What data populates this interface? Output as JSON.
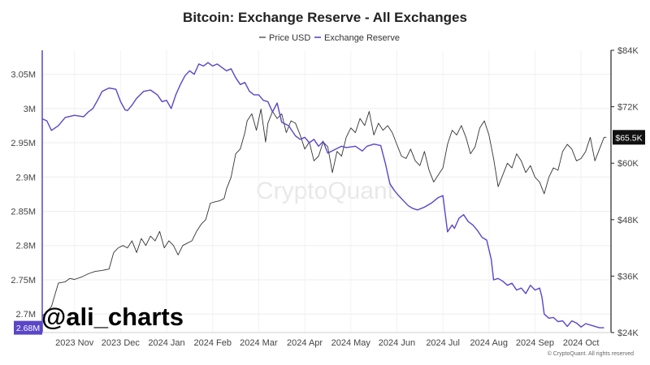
{
  "chart_data": {
    "type": "line",
    "title": "Bitcoin: Exchange Reserve - All Exchanges",
    "x_tick_labels": [
      "2023 Nov",
      "2023 Dec",
      "2024 Jan",
      "2024 Feb",
      "2024 Mar",
      "2024 Apr",
      "2024 May",
      "2024 Jun",
      "2024 Jul",
      "2024 Aug",
      "2024 Sep",
      "2024 Oct"
    ],
    "x_tick_times": [
      0.7,
      1.7,
      2.7,
      3.7,
      4.7,
      5.7,
      6.7,
      7.7,
      8.7,
      9.7,
      10.7,
      11.7
    ],
    "x_range": [
      0,
      12.35
    ],
    "left_axis": {
      "label": "Exchange Reserve",
      "range": [
        2.673,
        3.085
      ],
      "ticks": [
        2.7,
        2.75,
        2.8,
        2.85,
        2.9,
        2.95,
        3.0,
        3.05
      ],
      "tick_labels": [
        "2.7M",
        "2.75M",
        "2.8M",
        "2.85M",
        "2.9M",
        "2.95M",
        "3M",
        "3.05M"
      ]
    },
    "right_axis": {
      "label": "Price USD",
      "range": [
        24,
        84
      ],
      "ticks": [
        24,
        36,
        48,
        60,
        72,
        84
      ],
      "tick_labels": [
        "$24K",
        "$36K",
        "$48K",
        "$60K",
        "$72K",
        "$84K"
      ]
    },
    "series": [
      {
        "name": "Exchange Reserve",
        "axis": "left",
        "color": "#5b45c8",
        "points": [
          [
            0.0,
            2.985
          ],
          [
            0.1,
            2.982
          ],
          [
            0.2,
            2.968
          ],
          [
            0.35,
            2.975
          ],
          [
            0.5,
            2.987
          ],
          [
            0.7,
            2.99
          ],
          [
            0.9,
            2.988
          ],
          [
            1.0,
            2.995
          ],
          [
            1.1,
            3.0
          ],
          [
            1.2,
            3.012
          ],
          [
            1.3,
            3.025
          ],
          [
            1.45,
            3.03
          ],
          [
            1.6,
            3.028
          ],
          [
            1.7,
            3.01
          ],
          [
            1.8,
            2.998
          ],
          [
            1.85,
            2.997
          ],
          [
            1.95,
            3.005
          ],
          [
            2.05,
            3.015
          ],
          [
            2.2,
            3.025
          ],
          [
            2.35,
            3.027
          ],
          [
            2.5,
            3.02
          ],
          [
            2.6,
            3.01
          ],
          [
            2.7,
            3.012
          ],
          [
            2.8,
            3.0
          ],
          [
            2.9,
            3.02
          ],
          [
            3.0,
            3.035
          ],
          [
            3.1,
            3.048
          ],
          [
            3.2,
            3.055
          ],
          [
            3.3,
            3.05
          ],
          [
            3.4,
            3.065
          ],
          [
            3.5,
            3.062
          ],
          [
            3.6,
            3.067
          ],
          [
            3.7,
            3.062
          ],
          [
            3.8,
            3.065
          ],
          [
            4.0,
            3.055
          ],
          [
            4.1,
            3.058
          ],
          [
            4.2,
            3.045
          ],
          [
            4.3,
            3.035
          ],
          [
            4.4,
            3.038
          ],
          [
            4.5,
            3.025
          ],
          [
            4.6,
            3.02
          ],
          [
            4.7,
            3.02
          ],
          [
            4.8,
            3.012
          ],
          [
            4.9,
            3.01
          ],
          [
            5.0,
            2.995
          ],
          [
            5.1,
            3.008
          ],
          [
            5.2,
            2.98
          ],
          [
            5.35,
            2.975
          ],
          [
            5.5,
            2.96
          ],
          [
            5.6,
            2.955
          ],
          [
            5.7,
            2.958
          ],
          [
            5.8,
            2.95
          ],
          [
            5.9,
            2.955
          ],
          [
            6.0,
            2.945
          ],
          [
            6.1,
            2.952
          ],
          [
            6.2,
            2.935
          ],
          [
            6.35,
            2.94
          ],
          [
            6.5,
            2.945
          ],
          [
            6.6,
            2.943
          ],
          [
            6.8,
            2.945
          ],
          [
            6.95,
            2.938
          ],
          [
            7.05,
            2.945
          ],
          [
            7.2,
            2.948
          ],
          [
            7.35,
            2.946
          ],
          [
            7.45,
            2.92
          ],
          [
            7.55,
            2.89
          ],
          [
            7.65,
            2.88
          ],
          [
            7.75,
            2.872
          ],
          [
            7.85,
            2.865
          ],
          [
            7.95,
            2.858
          ],
          [
            8.05,
            2.854
          ],
          [
            8.15,
            2.852
          ],
          [
            8.3,
            2.856
          ],
          [
            8.45,
            2.862
          ],
          [
            8.6,
            2.87
          ],
          [
            8.7,
            2.873
          ],
          [
            8.8,
            2.82
          ],
          [
            8.9,
            2.83
          ],
          [
            8.95,
            2.825
          ],
          [
            9.05,
            2.84
          ],
          [
            9.15,
            2.845
          ],
          [
            9.25,
            2.835
          ],
          [
            9.35,
            2.83
          ],
          [
            9.45,
            2.822
          ],
          [
            9.55,
            2.812
          ],
          [
            9.65,
            2.808
          ],
          [
            9.75,
            2.78
          ],
          [
            9.8,
            2.75
          ],
          [
            9.9,
            2.752
          ],
          [
            10.0,
            2.748
          ],
          [
            10.1,
            2.742
          ],
          [
            10.2,
            2.745
          ],
          [
            10.3,
            2.735
          ],
          [
            10.4,
            2.738
          ],
          [
            10.5,
            2.73
          ],
          [
            10.6,
            2.742
          ],
          [
            10.7,
            2.735
          ],
          [
            10.8,
            2.738
          ],
          [
            10.85,
            2.725
          ],
          [
            10.9,
            2.7
          ],
          [
            11.0,
            2.694
          ],
          [
            11.1,
            2.695
          ],
          [
            11.2,
            2.689
          ],
          [
            11.3,
            2.69
          ],
          [
            11.4,
            2.682
          ],
          [
            11.5,
            2.69
          ],
          [
            11.6,
            2.687
          ],
          [
            11.7,
            2.681
          ],
          [
            11.8,
            2.686
          ],
          [
            11.9,
            2.684
          ],
          [
            12.0,
            2.682
          ],
          [
            12.1,
            2.68
          ],
          [
            12.2,
            2.68
          ]
        ]
      },
      {
        "name": "Price USD",
        "axis": "right",
        "color": "#333333",
        "points": [
          [
            0.0,
            27.5
          ],
          [
            0.1,
            28.5
          ],
          [
            0.2,
            29.5
          ],
          [
            0.35,
            34.5
          ],
          [
            0.5,
            34.8
          ],
          [
            0.6,
            35.5
          ],
          [
            0.7,
            35.3
          ],
          [
            0.85,
            35.8
          ],
          [
            1.0,
            36.5
          ],
          [
            1.15,
            37.0
          ],
          [
            1.3,
            37.2
          ],
          [
            1.45,
            37.5
          ],
          [
            1.55,
            41.0
          ],
          [
            1.65,
            42.0
          ],
          [
            1.75,
            42.5
          ],
          [
            1.85,
            42.0
          ],
          [
            1.95,
            43.5
          ],
          [
            2.05,
            41.0
          ],
          [
            2.15,
            44.0
          ],
          [
            2.25,
            42.5
          ],
          [
            2.35,
            44.5
          ],
          [
            2.45,
            43.5
          ],
          [
            2.55,
            45.5
          ],
          [
            2.65,
            42.0
          ],
          [
            2.75,
            43.5
          ],
          [
            2.85,
            42.5
          ],
          [
            2.95,
            40.5
          ],
          [
            3.05,
            42.5
          ],
          [
            3.15,
            43.0
          ],
          [
            3.25,
            43.5
          ],
          [
            3.35,
            45.5
          ],
          [
            3.45,
            47.0
          ],
          [
            3.55,
            48.0
          ],
          [
            3.65,
            51.5
          ],
          [
            3.75,
            51.8
          ],
          [
            3.85,
            52.0
          ],
          [
            3.95,
            52.5
          ],
          [
            4.0,
            54.5
          ],
          [
            4.1,
            57.0
          ],
          [
            4.2,
            62.0
          ],
          [
            4.3,
            63.0
          ],
          [
            4.4,
            66.5
          ],
          [
            4.45,
            69.0
          ],
          [
            4.55,
            70.5
          ],
          [
            4.65,
            67.0
          ],
          [
            4.75,
            71.5
          ],
          [
            4.85,
            64.5
          ],
          [
            4.9,
            68.5
          ],
          [
            5.0,
            71.0
          ],
          [
            5.1,
            69.5
          ],
          [
            5.2,
            70.5
          ],
          [
            5.3,
            66.5
          ],
          [
            5.4,
            69.0
          ],
          [
            5.5,
            68.5
          ],
          [
            5.6,
            66.0
          ],
          [
            5.7,
            63.0
          ],
          [
            5.8,
            64.5
          ],
          [
            5.9,
            60.5
          ],
          [
            6.0,
            61.5
          ],
          [
            6.1,
            64.5
          ],
          [
            6.2,
            63.5
          ],
          [
            6.3,
            58.0
          ],
          [
            6.4,
            62.5
          ],
          [
            6.5,
            61.5
          ],
          [
            6.6,
            65.5
          ],
          [
            6.7,
            67.5
          ],
          [
            6.8,
            66.5
          ],
          [
            6.9,
            69.5
          ],
          [
            7.0,
            68.0
          ],
          [
            7.1,
            71.0
          ],
          [
            7.2,
            66.0
          ],
          [
            7.3,
            68.5
          ],
          [
            7.4,
            67.0
          ],
          [
            7.5,
            68.0
          ],
          [
            7.6,
            66.5
          ],
          [
            7.7,
            64.0
          ],
          [
            7.8,
            61.5
          ],
          [
            7.9,
            61.0
          ],
          [
            8.0,
            63.0
          ],
          [
            8.1,
            60.5
          ],
          [
            8.2,
            59.5
          ],
          [
            8.3,
            62.5
          ],
          [
            8.4,
            58.5
          ],
          [
            8.5,
            56.0
          ],
          [
            8.6,
            57.5
          ],
          [
            8.7,
            59.0
          ],
          [
            8.8,
            64.0
          ],
          [
            8.9,
            67.0
          ],
          [
            9.0,
            66.0
          ],
          [
            9.1,
            68.0
          ],
          [
            9.2,
            65.5
          ],
          [
            9.3,
            62.0
          ],
          [
            9.4,
            63.5
          ],
          [
            9.5,
            67.5
          ],
          [
            9.6,
            69.0
          ],
          [
            9.7,
            66.0
          ],
          [
            9.8,
            61.0
          ],
          [
            9.9,
            55.0
          ],
          [
            10.0,
            57.5
          ],
          [
            10.1,
            60.0
          ],
          [
            10.2,
            59.0
          ],
          [
            10.3,
            62.0
          ],
          [
            10.4,
            60.5
          ],
          [
            10.5,
            58.0
          ],
          [
            10.6,
            59.5
          ],
          [
            10.7,
            57.0
          ],
          [
            10.8,
            56.0
          ],
          [
            10.9,
            53.5
          ],
          [
            11.0,
            57.0
          ],
          [
            11.1,
            59.0
          ],
          [
            11.2,
            58.5
          ],
          [
            11.3,
            62.5
          ],
          [
            11.4,
            64.0
          ],
          [
            11.5,
            63.0
          ],
          [
            11.6,
            60.5
          ],
          [
            11.7,
            61.0
          ],
          [
            11.8,
            62.5
          ],
          [
            11.9,
            65.5
          ],
          [
            12.0,
            60.5
          ],
          [
            12.1,
            63.0
          ],
          [
            12.2,
            65.5
          ],
          [
            12.25,
            65.5
          ]
        ]
      }
    ],
    "current_values": {
      "reserve_label": "2.68M",
      "price_label": "$65.5K"
    }
  },
  "watermark": "CryptoQuant",
  "copyright": "© CryptoQuant. All rights reserved",
  "overlay_handle": "@ali_charts"
}
